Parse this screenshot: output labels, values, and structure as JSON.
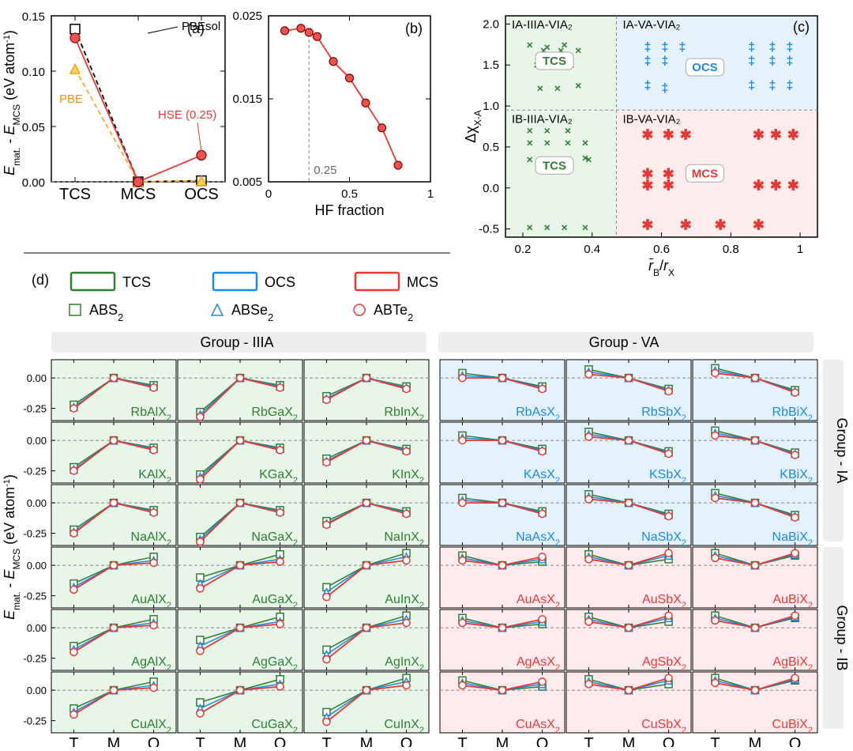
{
  "colors": {
    "red": "#e53935",
    "darkred": "#8b0000",
    "blue": "#1e88e5",
    "green": "#2e7d32",
    "orange": "#ffa726",
    "black": "#000000",
    "bg_green": "#e8f5e9",
    "bg_blue": "#e3f2fd",
    "bg_pink": "#ffebee",
    "grid": "#888888"
  },
  "fonts": {
    "label": 18,
    "label_sm": 15,
    "bigtick": 20,
    "compound": 16
  },
  "panel_a": {
    "type": "line",
    "title": "(a)",
    "ylabel": "E_mat. − E_MCS (eV atom⁻¹)",
    "x_categories": [
      "TCS",
      "MCS",
      "OCS"
    ],
    "ylim": [
      0.0,
      0.15
    ],
    "yticks": [
      0.0,
      0.05,
      0.1,
      0.15
    ],
    "series": {
      "PBEsol": {
        "values": [
          0.138,
          0.0,
          0.001
        ],
        "color": "#000000",
        "marker": "square",
        "dash": true,
        "label": "PBEsol"
      },
      "PBE": {
        "values": [
          0.102,
          0.0,
          0.001
        ],
        "color": "#ffa726",
        "marker": "triangle",
        "dash": true,
        "label": "PBE"
      },
      "HSE": {
        "values": [
          0.13,
          0.0,
          0.024
        ],
        "color": "#e53935",
        "marker": "circle",
        "dash": false,
        "label": "HSE (0.25)"
      }
    }
  },
  "panel_b": {
    "type": "line",
    "title": "(b)",
    "xlabel": "HF fraction",
    "xlim": [
      0,
      1
    ],
    "xticks": [
      0,
      0.5,
      1
    ],
    "ylim": [
      0.005,
      0.025
    ],
    "yticks": [
      0.005,
      0.015,
      0.025
    ],
    "marker_color": "#ef5350",
    "line_color": "#e53935",
    "ref_line_x": 0.25,
    "ref_label": "0.25",
    "points": [
      [
        0.1,
        0.0232
      ],
      [
        0.2,
        0.0235
      ],
      [
        0.25,
        0.023
      ],
      [
        0.3,
        0.0225
      ],
      [
        0.4,
        0.0195
      ],
      [
        0.5,
        0.0175
      ],
      [
        0.6,
        0.0145
      ],
      [
        0.7,
        0.0115
      ],
      [
        0.8,
        0.007
      ]
    ]
  },
  "panel_c": {
    "type": "scatter",
    "title": "(c)",
    "xlabel": "r̄_B / r_X",
    "ylabel": "Δχ_(X−A)",
    "xlim": [
      0.15,
      1.05
    ],
    "xticks": [
      0.2,
      0.4,
      0.6,
      0.8,
      1
    ],
    "ylim": [
      -0.6,
      2.1
    ],
    "yticks": [
      -0.5,
      0.0,
      0.5,
      1.0,
      1.5,
      2.0
    ],
    "quadrants": {
      "top_left": {
        "label": "IA-IIIA-VIA₂",
        "badge": "TCS",
        "bg": "#e9f5e9"
      },
      "top_right": {
        "label": "IA-VA-VIA₂",
        "badge": "OCS",
        "bg": "#e6f2fb"
      },
      "bot_left": {
        "label": "IB-IIIA-VIA₂",
        "badge": "TCS",
        "bg": "#e9f5e9"
      },
      "bot_right": {
        "label": "IB-VA-VIA₂",
        "badge": "MCS",
        "bg": "#fdecec"
      }
    },
    "cross_points": [
      [
        0.22,
        1.75
      ],
      [
        0.27,
        1.72
      ],
      [
        0.32,
        1.75
      ],
      [
        0.26,
        1.68
      ],
      [
        0.31,
        1.68
      ],
      [
        0.36,
        1.68
      ],
      [
        0.24,
        1.5
      ],
      [
        0.29,
        1.5
      ],
      [
        0.34,
        1.5
      ],
      [
        0.25,
        1.22
      ],
      [
        0.3,
        1.22
      ],
      [
        0.36,
        1.25
      ],
      [
        0.22,
        0.7
      ],
      [
        0.27,
        0.7
      ],
      [
        0.33,
        0.7
      ],
      [
        0.22,
        0.55
      ],
      [
        0.27,
        0.55
      ],
      [
        0.33,
        0.55
      ],
      [
        0.38,
        0.55
      ],
      [
        0.22,
        0.35
      ],
      [
        0.27,
        0.35
      ],
      [
        0.32,
        0.35
      ],
      [
        0.38,
        0.37
      ],
      [
        0.39,
        0.35
      ],
      [
        0.22,
        -0.48
      ],
      [
        0.27,
        -0.48
      ],
      [
        0.32,
        -0.48
      ],
      [
        0.38,
        -0.48
      ]
    ],
    "plus_points": [
      [
        0.56,
        1.72
      ],
      [
        0.61,
        1.72
      ],
      [
        0.66,
        1.72
      ],
      [
        0.86,
        1.72
      ],
      [
        0.92,
        1.72
      ],
      [
        0.97,
        1.72
      ],
      [
        0.56,
        1.55
      ],
      [
        0.61,
        1.55
      ],
      [
        0.86,
        1.55
      ],
      [
        0.92,
        1.55
      ],
      [
        0.97,
        1.55
      ],
      [
        0.56,
        1.25
      ],
      [
        0.61,
        1.22
      ],
      [
        0.86,
        1.25
      ],
      [
        0.92,
        1.25
      ],
      [
        0.97,
        1.25
      ]
    ],
    "ast_points": [
      [
        0.56,
        0.65
      ],
      [
        0.62,
        0.65
      ],
      [
        0.67,
        0.65
      ],
      [
        0.88,
        0.65
      ],
      [
        0.93,
        0.65
      ],
      [
        0.98,
        0.65
      ],
      [
        0.56,
        0.17
      ],
      [
        0.62,
        0.17
      ],
      [
        0.56,
        0.03
      ],
      [
        0.62,
        0.03
      ],
      [
        0.88,
        0.03
      ],
      [
        0.93,
        0.03
      ],
      [
        0.98,
        0.03
      ],
      [
        0.56,
        -0.45
      ],
      [
        0.67,
        -0.45
      ],
      [
        0.77,
        -0.45
      ],
      [
        0.88,
        -0.45
      ]
    ],
    "vline_x": 0.47,
    "hline_y": 0.95
  },
  "panel_d": {
    "title": "(d)",
    "ylabel": "E_mat. − E_MCS (eV atom⁻¹)",
    "legend1": [
      {
        "label": "TCS",
        "color": "#2e7d32"
      },
      {
        "label": "OCS",
        "color": "#1e88e5"
      },
      {
        "label": "MCS",
        "color": "#e53935"
      }
    ],
    "legend2": [
      {
        "label": "ABS₂",
        "marker": "square",
        "color": "#2e7d32"
      },
      {
        "label": "ABSe₂",
        "marker": "triangle",
        "color": "#1e88e5"
      },
      {
        "label": "ABTe₂",
        "marker": "circle",
        "color": "#e53935"
      }
    ],
    "col_headers": [
      "Group - IIIA",
      "Group - VA"
    ],
    "row_headers": [
      "Group - IA",
      "Group - IB"
    ],
    "x_categories": [
      "T",
      "M",
      "O"
    ],
    "ylim": [
      -0.35,
      0.15
    ],
    "yticks": [
      -0.25,
      0.0
    ],
    "subplot_bg_left": "#e8f5e9",
    "subplot_bg_right_top": "#e3f2fd",
    "subplot_bg_right_bot": "#ffebee",
    "compounds": [
      [
        "RbAlX₂",
        "RbGaX₂",
        "RbInX₂",
        "RbAsX₂",
        "RbSbX₂",
        "RbBiX₂"
      ],
      [
        "KAlX₂",
        "KGaX₂",
        "KInX₂",
        "KAsX₂",
        "KSbX₂",
        "KBiX₂"
      ],
      [
        "NaAlX₂",
        "NaGaX₂",
        "NaInX₂",
        "NaAsX₂",
        "NaSbX₂",
        "NaBiX₂"
      ],
      [
        "AuAlX₂",
        "AuGaX₂",
        "AuInX₂",
        "AuAsX₂",
        "AuSbX₂",
        "AuBiX₂"
      ],
      [
        "AgAlX₂",
        "AgGaX₂",
        "AgInX₂",
        "AgAsX₂",
        "AgSbX₂",
        "AgBiX₂"
      ],
      [
        "CuAlX₂",
        "CuGaX₂",
        "CuInX₂",
        "CuAsX₂",
        "CuSbX₂",
        "CuBiX₂"
      ]
    ],
    "label_colors": [
      [
        "#2e7d32",
        "#2e7d32",
        "#2e7d32",
        "#1e88e5",
        "#1e88e5",
        "#1e88e5"
      ],
      [
        "#2e7d32",
        "#2e7d32",
        "#2e7d32",
        "#1e88e5",
        "#1e88e5",
        "#1e88e5"
      ],
      [
        "#2e7d32",
        "#2e7d32",
        "#2e7d32",
        "#1e88e5",
        "#1e88e5",
        "#1e88e5"
      ],
      [
        "#2e7d32",
        "#2e7d32",
        "#2e7d32",
        "#e53935",
        "#e53935",
        "#e53935"
      ],
      [
        "#2e7d32",
        "#2e7d32",
        "#2e7d32",
        "#e53935",
        "#e53935",
        "#e53935"
      ],
      [
        "#2e7d32",
        "#2e7d32",
        "#2e7d32",
        "#e53935",
        "#e53935",
        "#e53935"
      ]
    ],
    "curves": {
      "left_top": {
        "S": [
          -0.22,
          0.0,
          -0.06
        ],
        "Se": [
          -0.24,
          0.0,
          -0.07
        ],
        "Te": [
          -0.25,
          0.0,
          -0.08
        ]
      },
      "left_top2": {
        "S": [
          -0.28,
          0.0,
          -0.06
        ],
        "Se": [
          -0.3,
          0.0,
          -0.07
        ],
        "Te": [
          -0.32,
          0.0,
          -0.08
        ]
      },
      "left_top3": {
        "S": [
          -0.15,
          0.0,
          -0.07
        ],
        "Se": [
          -0.17,
          0.0,
          -0.08
        ],
        "Te": [
          -0.18,
          0.0,
          -0.09
        ]
      },
      "left_bot": {
        "S": [
          -0.15,
          0.0,
          0.07
        ],
        "Se": [
          -0.18,
          0.0,
          0.04
        ],
        "Te": [
          -0.2,
          0.0,
          0.02
        ]
      },
      "left_bot2": {
        "S": [
          -0.1,
          0.0,
          0.09
        ],
        "Se": [
          -0.15,
          0.0,
          0.05
        ],
        "Te": [
          -0.19,
          0.0,
          0.03
        ]
      },
      "left_bot3": {
        "S": [
          -0.18,
          0.0,
          0.1
        ],
        "Se": [
          -0.22,
          0.0,
          0.07
        ],
        "Te": [
          -0.26,
          0.0,
          0.04
        ]
      },
      "right_top": {
        "S": [
          0.04,
          0.0,
          -0.07
        ],
        "Se": [
          0.02,
          0.0,
          -0.08
        ],
        "Te": [
          0.0,
          0.0,
          -0.09
        ]
      },
      "right_top2": {
        "S": [
          0.07,
          0.0,
          -0.09
        ],
        "Se": [
          0.05,
          0.0,
          -0.1
        ],
        "Te": [
          0.03,
          0.0,
          -0.11
        ]
      },
      "right_top3": {
        "S": [
          0.08,
          0.0,
          -0.1
        ],
        "Se": [
          0.06,
          0.0,
          -0.11
        ],
        "Te": [
          0.04,
          0.0,
          -0.12
        ]
      },
      "right_bot": {
        "S": [
          0.08,
          0.0,
          0.03
        ],
        "Se": [
          0.06,
          0.0,
          0.05
        ],
        "Te": [
          0.04,
          0.0,
          0.07
        ]
      },
      "right_bot2": {
        "S": [
          0.09,
          0.0,
          0.05
        ],
        "Se": [
          0.07,
          0.0,
          0.08
        ],
        "Te": [
          0.05,
          0.0,
          0.1
        ]
      },
      "right_bot3": {
        "S": [
          0.1,
          0.0,
          0.08
        ],
        "Se": [
          0.08,
          0.0,
          0.09
        ],
        "Te": [
          0.06,
          0.0,
          0.1
        ]
      }
    },
    "curve_map": [
      [
        "left_top",
        "left_top2",
        "left_top3",
        "right_top",
        "right_top2",
        "right_top3"
      ],
      [
        "left_top",
        "left_top2",
        "left_top3",
        "right_top",
        "right_top2",
        "right_top3"
      ],
      [
        "left_top",
        "left_top2",
        "left_top3",
        "right_top",
        "right_top2",
        "right_top3"
      ],
      [
        "left_bot",
        "left_bot2",
        "left_bot3",
        "right_bot",
        "right_bot2",
        "right_bot3"
      ],
      [
        "left_bot",
        "left_bot2",
        "left_bot3",
        "right_bot",
        "right_bot2",
        "right_bot3"
      ],
      [
        "left_bot",
        "left_bot2",
        "left_bot3",
        "right_bot",
        "right_bot2",
        "right_bot3"
      ]
    ]
  }
}
